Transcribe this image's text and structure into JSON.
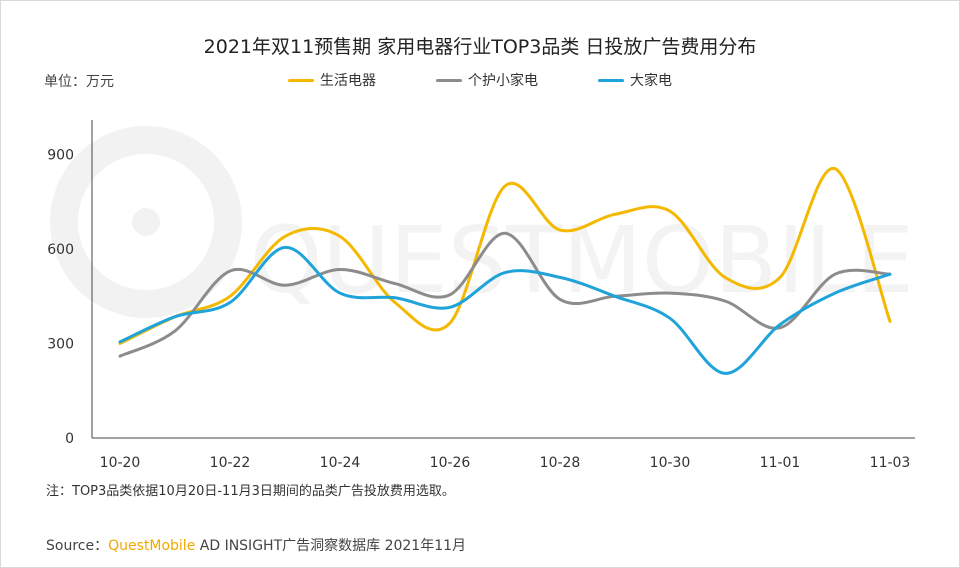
{
  "title": "2021年双11预售期 家用电器行业TOP3品类 日投放广告费用分布",
  "unit_label": "单位：万元",
  "note": "注：TOP3品类依据10月20日-11月3日期间的品类广告投放费用选取。",
  "source": {
    "prefix": "Source：",
    "brand": "QuestMobile",
    "suffix": " AD INSIGHT广告洞察数据库 2021年11月"
  },
  "watermark": "QUESTMOBILE",
  "chart_data": {
    "type": "line",
    "smooth": true,
    "title": "2021年双11预售期 家用电器行业TOP3品类 日投放广告费用分布",
    "ylabel": "单位：万元",
    "ylim": [
      0,
      1000
    ],
    "yticks": [
      0,
      300,
      600,
      900
    ],
    "grid": false,
    "legend_position": "top",
    "x": [
      "10-20",
      "10-21",
      "10-22",
      "10-23",
      "10-24",
      "10-25",
      "10-26",
      "10-27",
      "10-28",
      "10-29",
      "10-30",
      "10-31",
      "11-01",
      "11-02",
      "11-03"
    ],
    "x_tick_labels": [
      "10-20",
      "10-22",
      "10-24",
      "10-26",
      "10-28",
      "10-30",
      "11-01",
      "11-03"
    ],
    "series": [
      {
        "name": "生活电器",
        "color": "#f5b800",
        "values": [
          300,
          385,
          450,
          640,
          640,
          430,
          365,
          800,
          660,
          710,
          720,
          510,
          510,
          855,
          370
        ]
      },
      {
        "name": "个护小家电",
        "color": "#8c8c8c",
        "values": [
          260,
          340,
          530,
          485,
          535,
          490,
          455,
          650,
          440,
          450,
          460,
          435,
          350,
          520,
          520
        ]
      },
      {
        "name": "大家电",
        "color": "#1fa3d9",
        "values": [
          305,
          385,
          430,
          605,
          460,
          445,
          415,
          525,
          510,
          450,
          380,
          205,
          360,
          460,
          520
        ]
      }
    ]
  }
}
